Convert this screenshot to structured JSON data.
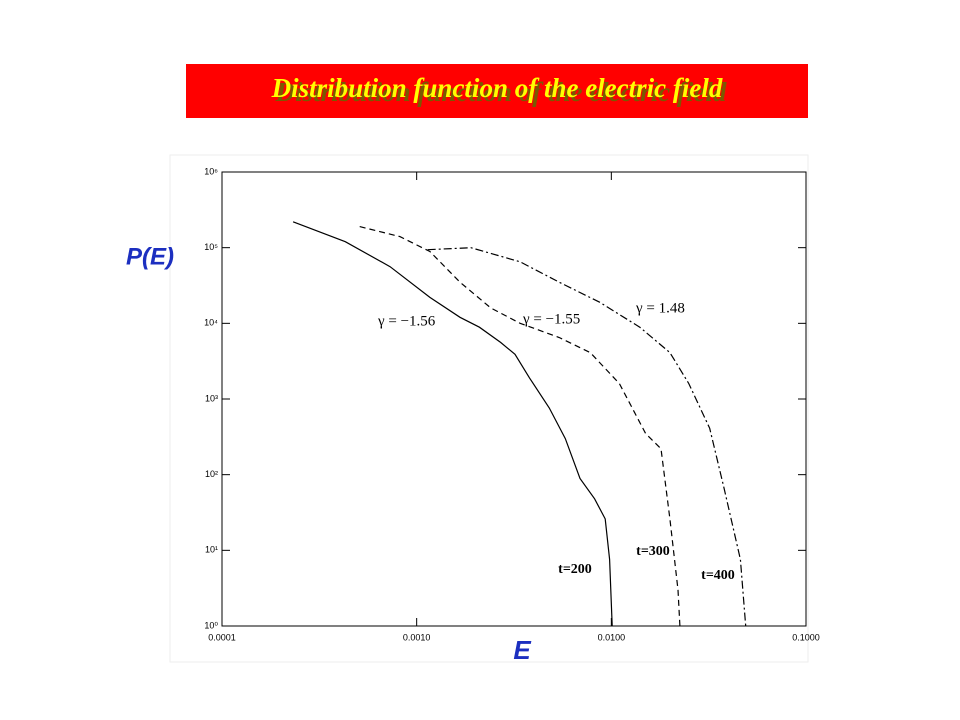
{
  "chart_data": {
    "type": "line",
    "title": "Distribution function of the electric field",
    "x_label": "E",
    "y_label": "P(E)",
    "log_x": true,
    "log_y": true,
    "xlim": [
      0.0001,
      0.1
    ],
    "ylim": [
      1,
      1000000
    ],
    "xticks": [
      {
        "value": 0.0001,
        "label": "0.0001"
      },
      {
        "value": 0.001,
        "label": "0.0010"
      },
      {
        "value": 0.01,
        "label": "0.0100"
      },
      {
        "value": 0.1,
        "label": "0.1000"
      }
    ],
    "yticks": [
      {
        "value": 1,
        "label": "10⁰"
      },
      {
        "value": 10,
        "label": "10¹"
      },
      {
        "value": 100,
        "label": "10²"
      },
      {
        "value": 1000,
        "label": "10³"
      },
      {
        "value": 10000,
        "label": "10⁴"
      },
      {
        "value": 100000,
        "label": "10⁵"
      },
      {
        "value": 1000000,
        "label": "10⁶"
      }
    ],
    "series": [
      {
        "name": "t=200",
        "color": "#000000",
        "dash": "none",
        "x": [
          0.000232,
          0.00043,
          0.00073,
          0.00117,
          0.00167,
          0.0021,
          0.0027,
          0.0032,
          0.0038,
          0.0048,
          0.0058,
          0.0069,
          0.0082,
          0.0093,
          0.0098,
          0.0101
        ],
        "values": [
          220000,
          120000,
          56000,
          22000,
          12000,
          8900,
          5600,
          3900,
          1900,
          760,
          300,
          89,
          48,
          26,
          7.6,
          1
        ]
      },
      {
        "name": "t=300",
        "color": "#000000",
        "dash": "6,4",
        "x": [
          0.00051,
          0.00082,
          0.00117,
          0.00167,
          0.0024,
          0.0034,
          0.0054,
          0.0078,
          0.011,
          0.015,
          0.018,
          0.02,
          0.022,
          0.0225
        ],
        "values": [
          190000,
          140000,
          89000,
          35000,
          16000,
          10000,
          6500,
          4100,
          1600,
          350,
          220,
          26,
          3,
          1
        ]
      },
      {
        "name": "t=400",
        "color": "#000000",
        "dash": "8,3,2,3",
        "x": [
          0.00114,
          0.0019,
          0.0034,
          0.0054,
          0.0087,
          0.014,
          0.02,
          0.025,
          0.032,
          0.038,
          0.046,
          0.049
        ],
        "values": [
          94000,
          100000,
          65000,
          35000,
          19000,
          8900,
          4100,
          1600,
          410,
          65,
          7.6,
          1
        ]
      }
    ],
    "annotations": [
      "γ = −1.56",
      "γ = −1.55",
      "γ = 1.48"
    ]
  }
}
